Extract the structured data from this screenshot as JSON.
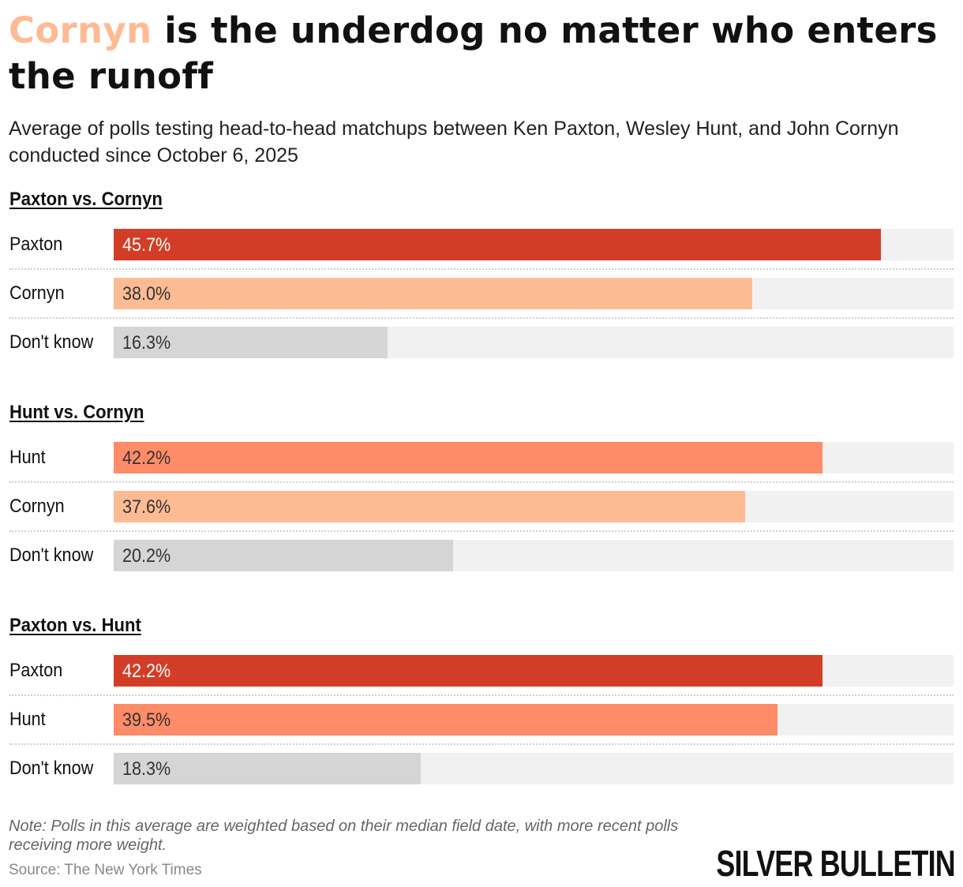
{
  "header": {
    "title_accent": "Cornyn",
    "title_rest": " is the underdog no matter who enters the runoff",
    "subtitle": "Average of polls testing head-to-head matchups between Ken Paxton, Wesley Hunt, and John Cornyn conducted since October 6, 2025"
  },
  "colors": {
    "paxton": "#D33D27",
    "hunt": "#FF8C68",
    "cornyn": "#FDBB94",
    "dont_know": "#D5D5D5",
    "track": "#F1F1F1"
  },
  "chart_data": {
    "type": "bar",
    "orientation": "horizontal",
    "title": "Cornyn is the underdog no matter who enters the runoff",
    "xlim": [
      0,
      50
    ],
    "groups": [
      {
        "title": "Paxton vs. Cornyn",
        "rows": [
          {
            "label": "Paxton",
            "value": 45.7,
            "value_label": "45.7%",
            "color": "#D33D27",
            "text_color": "#ffffff"
          },
          {
            "label": "Cornyn",
            "value": 38.0,
            "value_label": "38.0%",
            "color": "#FDBB94",
            "text_color": "#333333"
          },
          {
            "label": "Don't know",
            "value": 16.3,
            "value_label": "16.3%",
            "color": "#D5D5D5",
            "text_color": "#333333"
          }
        ]
      },
      {
        "title": "Hunt vs. Cornyn",
        "rows": [
          {
            "label": "Hunt",
            "value": 42.2,
            "value_label": "42.2%",
            "color": "#FF8C68",
            "text_color": "#333333"
          },
          {
            "label": "Cornyn",
            "value": 37.6,
            "value_label": "37.6%",
            "color": "#FDBB94",
            "text_color": "#333333"
          },
          {
            "label": "Don't know",
            "value": 20.2,
            "value_label": "20.2%",
            "color": "#D5D5D5",
            "text_color": "#333333"
          }
        ]
      },
      {
        "title": "Paxton vs. Hunt",
        "rows": [
          {
            "label": "Paxton",
            "value": 42.2,
            "value_label": "42.2%",
            "color": "#D33D27",
            "text_color": "#ffffff"
          },
          {
            "label": "Hunt",
            "value": 39.5,
            "value_label": "39.5%",
            "color": "#FF8C68",
            "text_color": "#333333"
          },
          {
            "label": "Don't know",
            "value": 18.3,
            "value_label": "18.3%",
            "color": "#D5D5D5",
            "text_color": "#333333"
          }
        ]
      }
    ]
  },
  "footer": {
    "note": "Note: Polls in this average are weighted based on their median field date, with more recent polls receiving more weight.",
    "source": "Source: The New York Times",
    "logo": "SILVER BULLETIN"
  }
}
